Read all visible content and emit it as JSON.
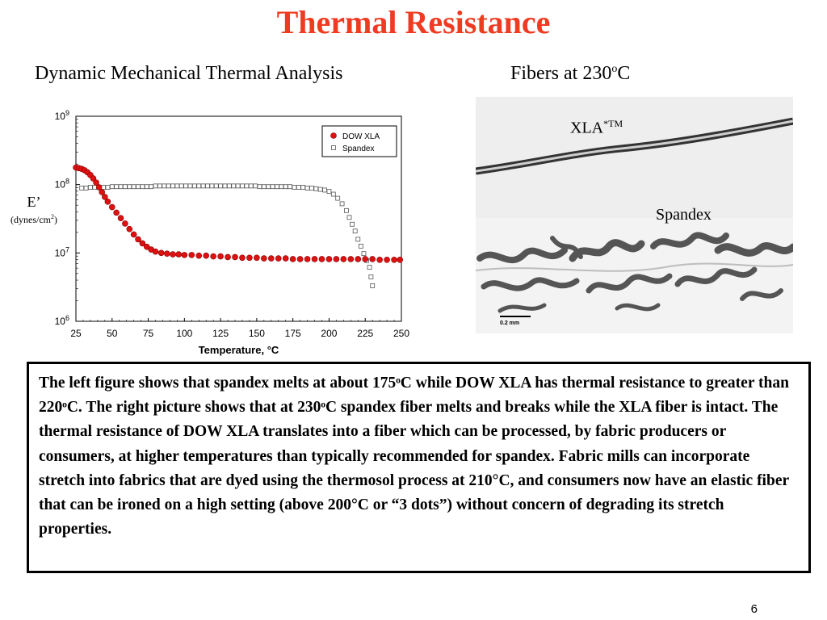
{
  "slide": {
    "title": "Thermal Resistance",
    "left_heading": "Dynamic Mechanical Thermal Analysis",
    "right_heading_main": "Fibers  at 230",
    "right_heading_sup": "o",
    "right_heading_tail": "C",
    "page_number": "6"
  },
  "photo": {
    "xla_label_main": "XLA",
    "xla_label_sup": "*TM",
    "spandex_label": "Spandex",
    "scale_bar_text": "0.2 mm"
  },
  "description": {
    "paragraph": "The left figure shows that spandex melts at about 175ᵒC while DOW XLA has thermal resistance to greater than 220ᵒC.  The right picture shows that at 230ᵒC spandex fiber melts and breaks while the XLA fiber is intact. The thermal resistance of DOW XLA translates into a fiber which can be processed, by fabric producers or consumers, at higher temperatures than typically recommended for spandex.   Fabric mills can incorporate stretch into fabrics that are dyed using the thermosol process at 210°C, and consumers now have an elastic fiber that can be ironed on a high setting (above 200°C or “3 dots”) without concern of degrading its stretch properties."
  },
  "chart_data": {
    "type": "scatter",
    "xlabel": "Temperature, °C",
    "ylabel": "E’",
    "ylabel_units": "(dynes/cm",
    "ylabel_units_sup": "2",
    "ylabel_units_tail": ")",
    "xlim": [
      25,
      250
    ],
    "ylim_log10": [
      6,
      9
    ],
    "y_scale": "log",
    "x_ticks": [
      25,
      50,
      75,
      100,
      125,
      150,
      175,
      200,
      225,
      250
    ],
    "y_ticks": [
      {
        "base": "10",
        "exp": "6",
        "log": 6
      },
      {
        "base": "10",
        "exp": "7",
        "log": 7
      },
      {
        "base": "10",
        "exp": "8",
        "log": 8
      },
      {
        "base": "10",
        "exp": "9",
        "log": 9
      }
    ],
    "legend_position": "top-right",
    "series": [
      {
        "name": "DOW XLA",
        "marker": "filled-circle",
        "color": "#dd1111",
        "x": [
          25,
          27,
          29,
          31,
          33,
          35,
          37,
          39,
          41,
          43,
          45,
          47,
          50,
          53,
          56,
          59,
          62,
          65,
          68,
          71,
          74,
          77,
          80,
          84,
          88,
          92,
          96,
          100,
          105,
          110,
          115,
          120,
          125,
          130,
          135,
          140,
          145,
          150,
          155,
          160,
          165,
          170,
          175,
          180,
          185,
          190,
          195,
          200,
          205,
          210,
          215,
          220,
          225,
          230,
          235,
          240,
          245,
          249
        ],
        "log10_y": [
          8.25,
          8.24,
          8.23,
          8.21,
          8.18,
          8.14,
          8.09,
          8.03,
          7.96,
          7.89,
          7.82,
          7.75,
          7.67,
          7.59,
          7.51,
          7.43,
          7.35,
          7.27,
          7.2,
          7.14,
          7.09,
          7.05,
          7.02,
          7.0,
          6.99,
          6.98,
          6.98,
          6.97,
          6.97,
          6.96,
          6.96,
          6.95,
          6.95,
          6.94,
          6.94,
          6.93,
          6.93,
          6.93,
          6.92,
          6.92,
          6.92,
          6.92,
          6.91,
          6.91,
          6.91,
          6.91,
          6.91,
          6.91,
          6.91,
          6.91,
          6.91,
          6.91,
          6.91,
          6.91,
          6.9,
          6.9,
          6.9,
          6.9
        ]
      },
      {
        "name": "Spandex",
        "marker": "open-square",
        "color": "#555555",
        "x": [
          29,
          32,
          35,
          38,
          41,
          44,
          47,
          50,
          53,
          56,
          59,
          62,
          65,
          68,
          71,
          74,
          77,
          80,
          83,
          86,
          89,
          92,
          95,
          98,
          101,
          104,
          107,
          110,
          113,
          116,
          119,
          122,
          125,
          128,
          131,
          134,
          137,
          140,
          143,
          146,
          149,
          152,
          155,
          158,
          161,
          164,
          167,
          170,
          173,
          176,
          179,
          182,
          185,
          188,
          191,
          194,
          197,
          200,
          203,
          206,
          209,
          212,
          214,
          216,
          218,
          220,
          222,
          224,
          226,
          228,
          229,
          230
        ],
        "log10_y": [
          7.95,
          7.95,
          7.96,
          7.96,
          7.96,
          7.96,
          7.96,
          7.97,
          7.97,
          7.97,
          7.97,
          7.97,
          7.97,
          7.97,
          7.97,
          7.97,
          7.97,
          7.98,
          7.98,
          7.98,
          7.98,
          7.98,
          7.98,
          7.98,
          7.98,
          7.98,
          7.98,
          7.98,
          7.98,
          7.98,
          7.98,
          7.98,
          7.98,
          7.98,
          7.98,
          7.98,
          7.98,
          7.98,
          7.98,
          7.98,
          7.98,
          7.97,
          7.97,
          7.97,
          7.97,
          7.97,
          7.97,
          7.97,
          7.97,
          7.96,
          7.96,
          7.96,
          7.95,
          7.95,
          7.94,
          7.93,
          7.92,
          7.9,
          7.86,
          7.8,
          7.72,
          7.62,
          7.52,
          7.42,
          7.32,
          7.2,
          7.1,
          6.99,
          6.89,
          6.79,
          6.65,
          6.52
        ]
      }
    ]
  }
}
